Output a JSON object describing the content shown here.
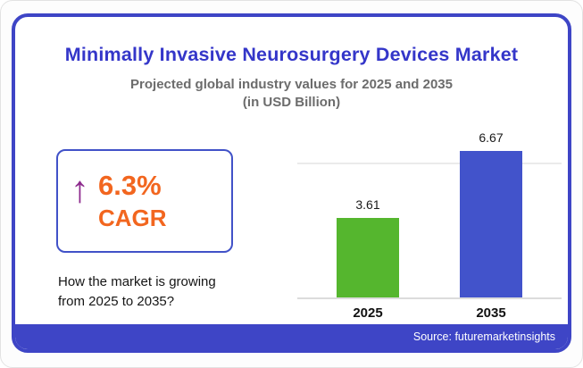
{
  "card": {
    "title": "Minimally Invasive Neurosurgery Devices Market",
    "subtitle_line1": "Projected global industry values for 2025 and 2035",
    "subtitle_line2": "(in USD Billion)",
    "footer_source": "Source: futuremarketinsights"
  },
  "cagr": {
    "arrow_icon": "up-arrow-icon",
    "value": "6.3%",
    "label": "CAGR",
    "question_line1": "How the market is growing",
    "question_line2": "from 2025 to 2035?"
  },
  "colors": {
    "accent_blue": "#3e45c6",
    "title_blue": "#3436c9",
    "bar_green": "#55b62e",
    "bar_blue": "#4253cb",
    "orange": "#f2661f",
    "purple": "#8d2b8d",
    "subtitle_gray": "#6c6c6c"
  },
  "chart_data": {
    "type": "bar",
    "categories": [
      "2025",
      "2035"
    ],
    "values": [
      3.61,
      6.67
    ],
    "series_colors": [
      "#55b62e",
      "#4253cb"
    ],
    "title": "Minimally Invasive Neurosurgery Devices Market",
    "subtitle": "Projected global industry values for 2025 and 2035 (in USD Billion)",
    "xlabel": "",
    "ylabel": "USD Billion",
    "ylim": [
      0,
      7
    ],
    "grid": true,
    "value_labels": true,
    "legend": "none"
  }
}
